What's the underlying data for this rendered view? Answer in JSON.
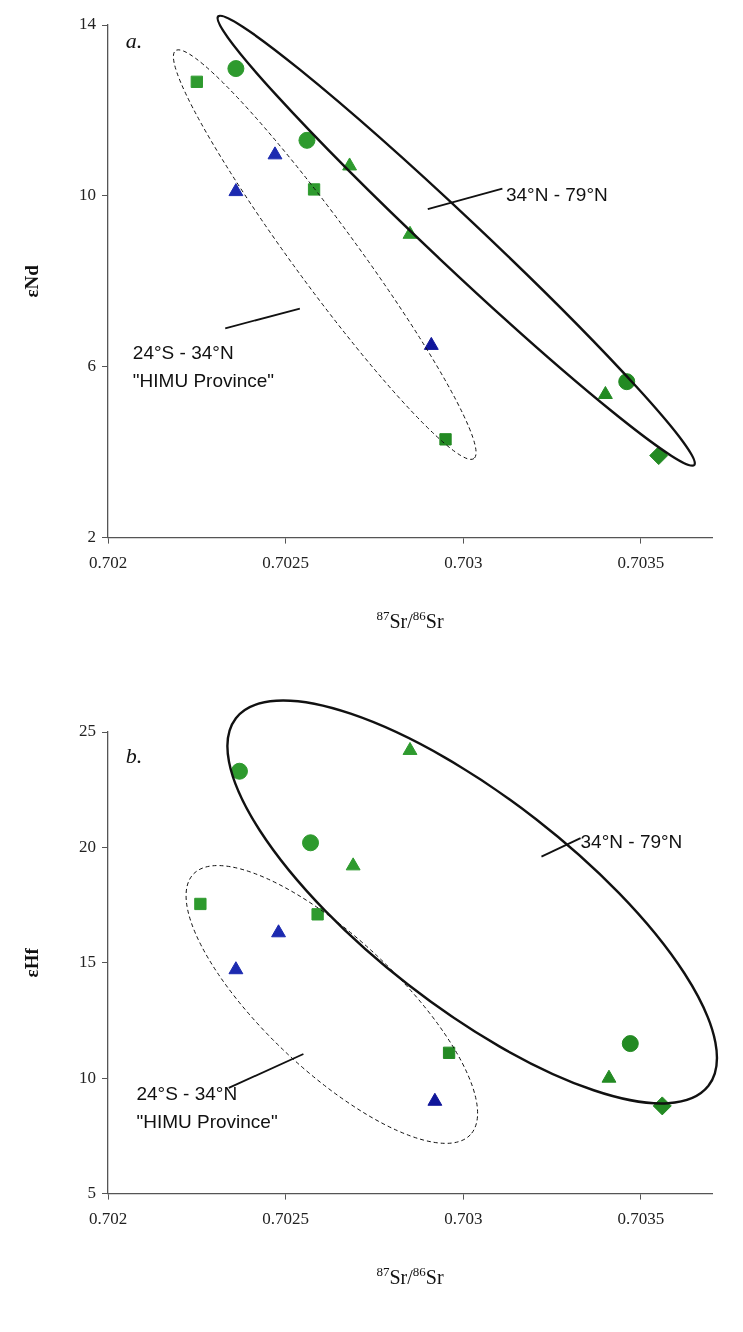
{
  "chart_data": [
    {
      "type": "scatter",
      "xlabel": "$^{87}$Sr/$^{86}$Sr",
      "ylabel": "εNd",
      "xlim": [
        0.702,
        0.7037
      ],
      "xticks": [
        0.702,
        0.7025,
        0.703,
        0.7035
      ],
      "ylim": [
        2,
        14
      ],
      "yticks": [
        2,
        6,
        10,
        14
      ],
      "grid": false,
      "legend": false,
      "annotations": [
        "a.",
        "34°N - 79°N",
        "24°S - 34°N\n\"HIMU Province\""
      ],
      "series": [
        {
          "color": "#2e9a2e",
          "marker": "square",
          "x": [
            0.70225,
            0.70258
          ],
          "values": [
            12.67,
            10.15
          ]
        },
        {
          "color": "#2e9a2e",
          "marker": "circle",
          "x": [
            0.70236,
            0.70256
          ],
          "values": [
            12.98,
            11.3
          ]
        },
        {
          "color": "#1c2ab0",
          "marker": "triangle",
          "x": [
            0.70247,
            0.70236
          ],
          "values": [
            10.96,
            10.1
          ]
        },
        {
          "color": "#2e9a2e",
          "marker": "triangle",
          "x": [
            0.70268,
            0.70285
          ],
          "values": [
            10.7,
            9.1
          ]
        },
        {
          "color": "#10169a",
          "marker": "triangle",
          "x": [
            0.70291
          ],
          "values": [
            6.5
          ]
        },
        {
          "color": "#238a23",
          "marker": "square",
          "x": [
            0.70295
          ],
          "values": [
            4.3
          ]
        },
        {
          "color": "#238a23",
          "marker": "triangle",
          "x": [
            0.7034
          ],
          "values": [
            5.35
          ]
        },
        {
          "color": "#238a23",
          "marker": "circle",
          "x": [
            0.70346
          ],
          "values": [
            5.65
          ]
        },
        {
          "color": "#238a23",
          "marker": "diamond",
          "x": [
            0.70355
          ],
          "values": [
            3.92
          ]
        }
      ]
    },
    {
      "type": "scatter",
      "xlabel": "$^{87}$Sr/$^{86}$Sr",
      "ylabel": "εHf",
      "xlim": [
        0.702,
        0.7037
      ],
      "xticks": [
        0.702,
        0.7025,
        0.703,
        0.7035
      ],
      "ylim": [
        5,
        25
      ],
      "yticks": [
        5,
        10,
        15,
        20,
        25
      ],
      "grid": false,
      "legend": false,
      "annotations": [
        "b.",
        "34°N - 79°N",
        "24°S - 34°N\n\"HIMU Province\""
      ],
      "series": [
        {
          "color": "#2e9a2e",
          "marker": "square",
          "x": [
            0.70226,
            0.70259
          ],
          "values": [
            17.55,
            17.1
          ]
        },
        {
          "color": "#2e9a2e",
          "marker": "circle",
          "x": [
            0.70237,
            0.70257
          ],
          "values": [
            23.3,
            20.2
          ]
        },
        {
          "color": "#1c2ab0",
          "marker": "triangle",
          "x": [
            0.70248,
            0.70236
          ],
          "values": [
            16.3,
            14.7
          ]
        },
        {
          "color": "#2e9a2e",
          "marker": "triangle",
          "x": [
            0.70269,
            0.70285
          ],
          "values": [
            19.2,
            24.2
          ]
        },
        {
          "color": "#10169a",
          "marker": "triangle",
          "x": [
            0.70292
          ],
          "values": [
            9.0
          ]
        },
        {
          "color": "#238a23",
          "marker": "square",
          "x": [
            0.70296
          ],
          "values": [
            11.1
          ]
        },
        {
          "color": "#238a23",
          "marker": "triangle",
          "x": [
            0.70341
          ],
          "values": [
            10.0
          ]
        },
        {
          "color": "#238a23",
          "marker": "circle",
          "x": [
            0.70347
          ],
          "values": [
            11.5
          ]
        },
        {
          "color": "#238a23",
          "marker": "diamond",
          "x": [
            0.70356
          ],
          "values": [
            8.8
          ]
        }
      ]
    }
  ]
}
